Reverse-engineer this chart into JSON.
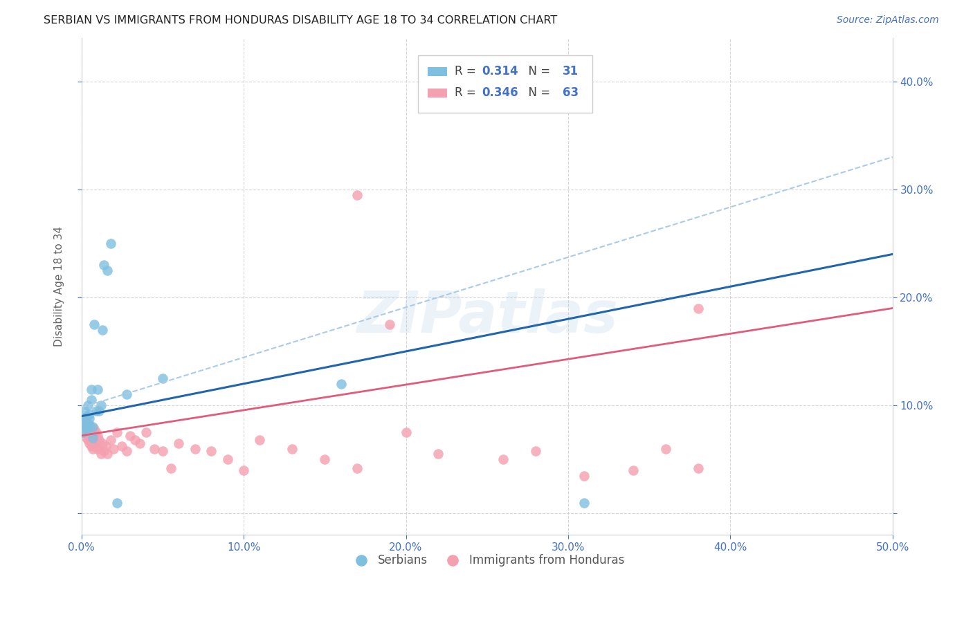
{
  "title": "SERBIAN VS IMMIGRANTS FROM HONDURAS DISABILITY AGE 18 TO 34 CORRELATION CHART",
  "source": "Source: ZipAtlas.com",
  "ylabel": "Disability Age 18 to 34",
  "xlim": [
    0.0,
    0.5
  ],
  "ylim": [
    -0.02,
    0.44
  ],
  "xticks": [
    0.0,
    0.1,
    0.2,
    0.3,
    0.4,
    0.5
  ],
  "yticks": [
    0.0,
    0.1,
    0.2,
    0.3,
    0.4
  ],
  "xticklabels": [
    "0.0%",
    "10.0%",
    "20.0%",
    "30.0%",
    "40.0%",
    "50.0%"
  ],
  "yticklabels": [
    "",
    "10.0%",
    "20.0%",
    "30.0%",
    "40.0%"
  ],
  "watermark": "ZIPatlas",
  "serbian_color": "#7fbfdf",
  "honduras_color": "#f4a0b0",
  "serbian_line_color": "#2166ac",
  "honduras_line_color": "#e05c7a",
  "dashed_line_color": "#aacce8",
  "tick_color": "#4472c4",
  "serbian_points_x": [
    0.001,
    0.001,
    0.002,
    0.002,
    0.003,
    0.003,
    0.003,
    0.004,
    0.004,
    0.004,
    0.005,
    0.005,
    0.005,
    0.006,
    0.006,
    0.007,
    0.007,
    0.008,
    0.009,
    0.01,
    0.011,
    0.012,
    0.013,
    0.014,
    0.016,
    0.018,
    0.022,
    0.028,
    0.05,
    0.16,
    0.31
  ],
  "serbian_points_y": [
    0.075,
    0.082,
    0.088,
    0.095,
    0.08,
    0.085,
    0.09,
    0.078,
    0.083,
    0.1,
    0.082,
    0.088,
    0.092,
    0.105,
    0.115,
    0.07,
    0.08,
    0.175,
    0.095,
    0.115,
    0.095,
    0.1,
    0.17,
    0.23,
    0.225,
    0.25,
    0.01,
    0.11,
    0.125,
    0.12,
    0.01
  ],
  "honduras_points_x": [
    0.001,
    0.001,
    0.002,
    0.002,
    0.002,
    0.003,
    0.003,
    0.003,
    0.004,
    0.004,
    0.004,
    0.005,
    0.005,
    0.005,
    0.006,
    0.006,
    0.006,
    0.007,
    0.007,
    0.008,
    0.008,
    0.009,
    0.009,
    0.01,
    0.01,
    0.011,
    0.012,
    0.013,
    0.014,
    0.015,
    0.016,
    0.018,
    0.02,
    0.022,
    0.025,
    0.028,
    0.03,
    0.033,
    0.036,
    0.04,
    0.045,
    0.05,
    0.055,
    0.06,
    0.07,
    0.08,
    0.09,
    0.1,
    0.11,
    0.13,
    0.15,
    0.17,
    0.2,
    0.22,
    0.26,
    0.28,
    0.31,
    0.34,
    0.36,
    0.38,
    0.17,
    0.19,
    0.38
  ],
  "honduras_points_y": [
    0.075,
    0.08,
    0.075,
    0.082,
    0.088,
    0.07,
    0.078,
    0.082,
    0.068,
    0.075,
    0.082,
    0.065,
    0.072,
    0.08,
    0.062,
    0.07,
    0.078,
    0.06,
    0.075,
    0.065,
    0.078,
    0.062,
    0.075,
    0.06,
    0.072,
    0.068,
    0.055,
    0.065,
    0.058,
    0.062,
    0.055,
    0.068,
    0.06,
    0.075,
    0.062,
    0.058,
    0.072,
    0.068,
    0.065,
    0.075,
    0.06,
    0.058,
    0.042,
    0.065,
    0.06,
    0.058,
    0.05,
    0.04,
    0.068,
    0.06,
    0.05,
    0.042,
    0.075,
    0.055,
    0.05,
    0.058,
    0.035,
    0.04,
    0.06,
    0.042,
    0.295,
    0.175,
    0.19
  ],
  "background_color": "#ffffff",
  "grid_color": "#cccccc",
  "serbian_line_x": [
    0.0,
    0.5
  ],
  "serbian_line_y": [
    0.09,
    0.24
  ],
  "honduras_line_x": [
    0.0,
    0.5
  ],
  "honduras_line_y": [
    0.072,
    0.19
  ],
  "dashed_line_x": [
    0.0,
    0.5
  ],
  "dashed_line_y": [
    0.098,
    0.33
  ]
}
